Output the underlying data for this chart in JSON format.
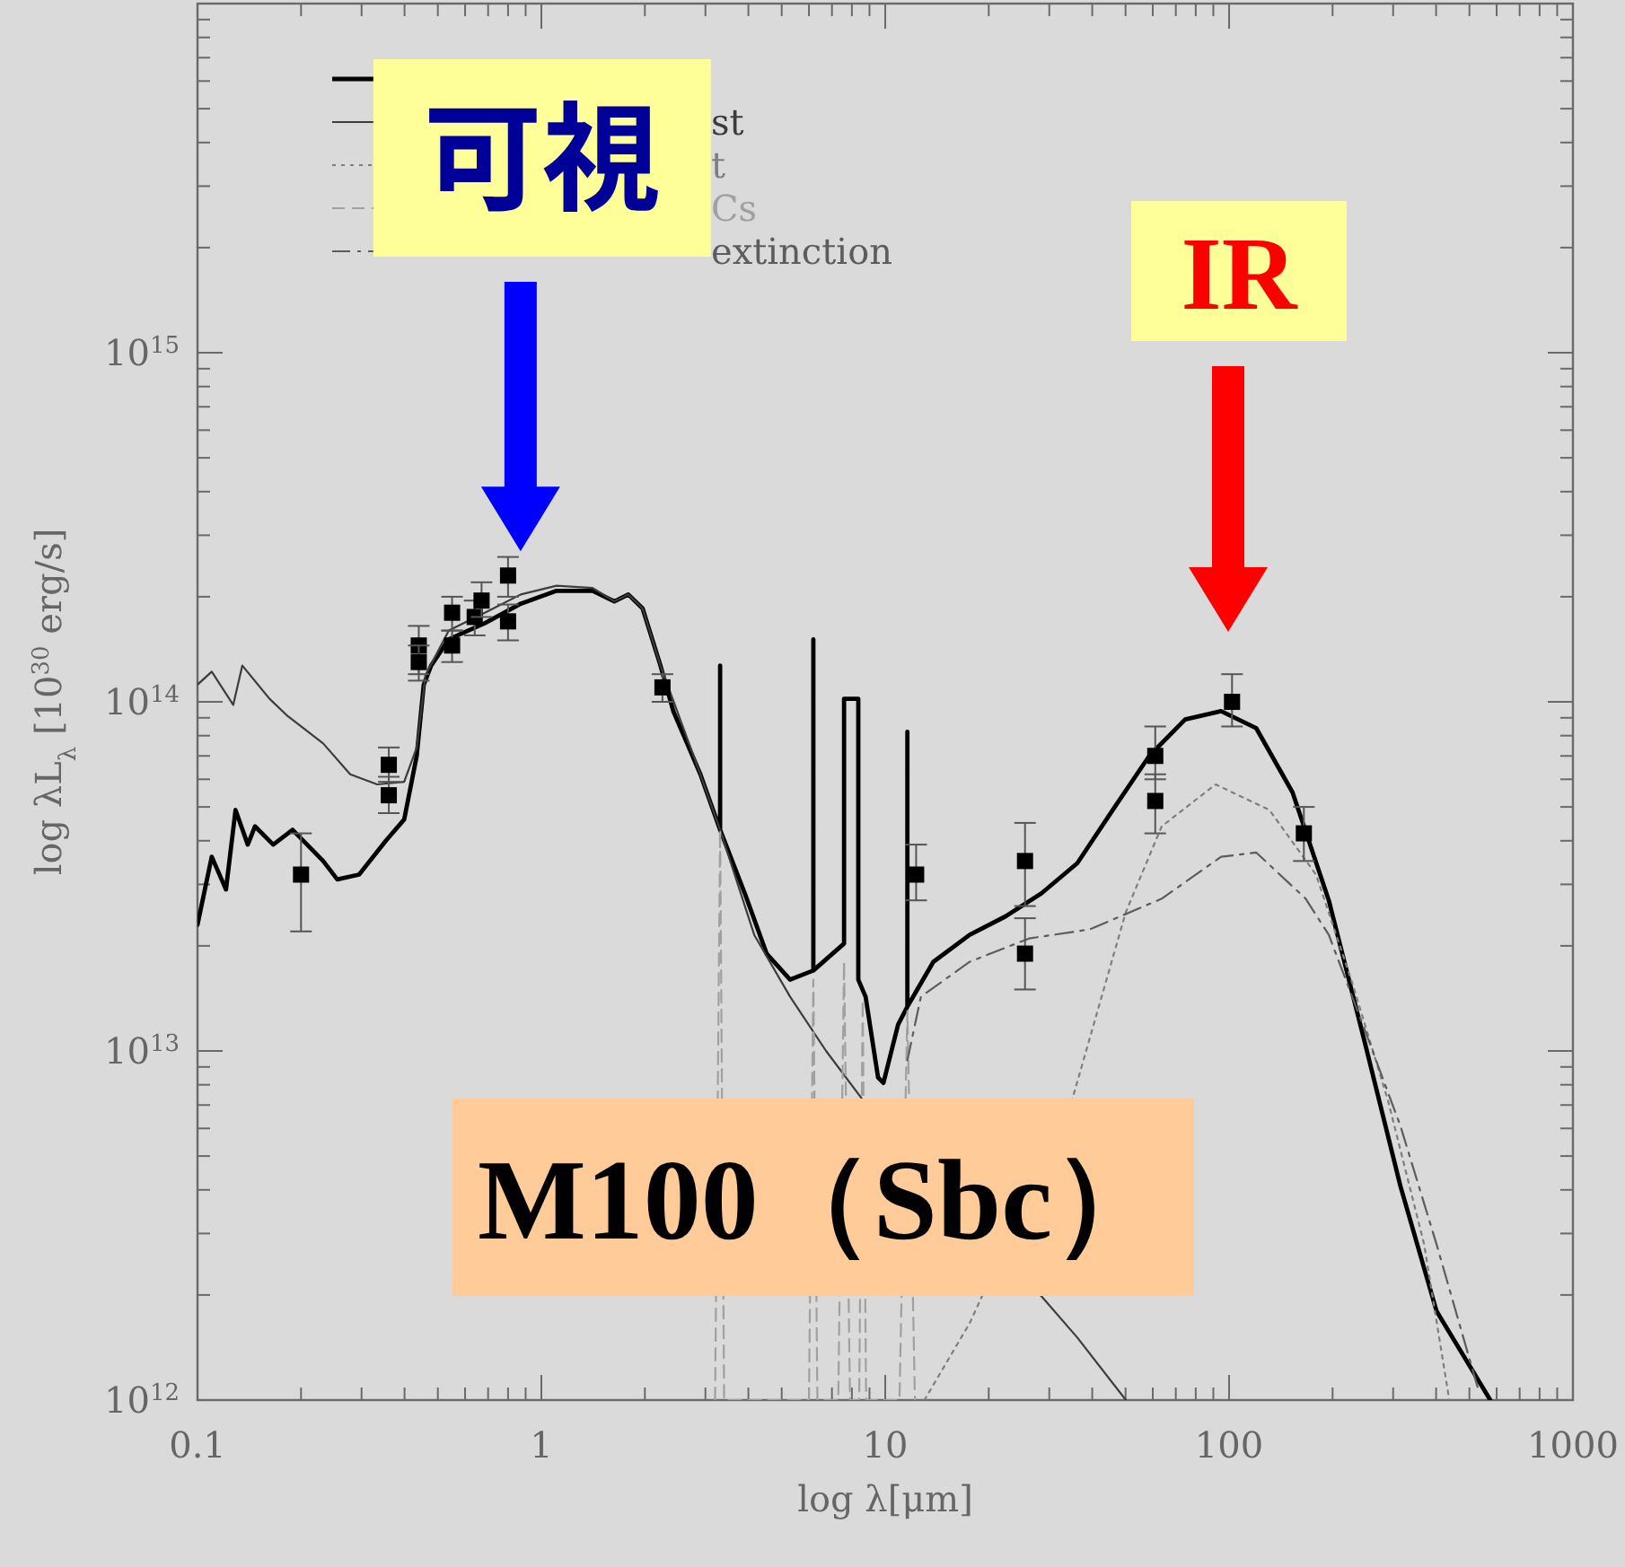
{
  "chart_data": {
    "type": "line",
    "xlabel": "log λ[μm]",
    "ylabel": "log λL$_{λ}$ [10$^{30}$ erg/s]",
    "log": "xy",
    "xlim": [
      0.1,
      1000
    ],
    "ylim": [
      1000000000000.0,
      1e+16
    ],
    "xticks": [
      0.1,
      1,
      10,
      100,
      1000
    ],
    "yticks": [
      {
        "value": 1000000000000.0,
        "label": "10$^{12}$"
      },
      {
        "value": 10000000000000.0,
        "label": "10$^{13}$"
      },
      {
        "value": 100000000000000.0,
        "label": "10$^{14}$"
      },
      {
        "value": 1000000000000000.0,
        "label": "10$^{15}$"
      }
    ],
    "legend": "top left",
    "grid": false,
    "series": [
      {
        "color": "#000000",
        "line_style": "solid",
        "x": [
          0.1,
          0.11,
          0.121,
          0.129,
          0.14,
          0.147,
          0.166,
          0.189,
          0.232,
          0.255,
          0.295,
          0.353,
          0.399,
          0.434,
          0.455,
          0.478,
          0.538,
          0.685,
          0.871,
          1.107,
          1.41,
          1.63,
          1.79,
          1.97,
          2.22,
          2.42,
          2.9,
          3.31,
          3.31,
          3.31,
          3.92,
          4.52,
          5.29,
          6.18,
          6.18,
          6.18,
          7.59,
          7.59,
          8.35,
          8.35,
          8.77,
          9.53,
          9.88,
          10.9,
          11.6,
          11.6,
          11.6,
          13.8,
          17.6,
          22.4,
          28.5,
          36.2,
          46.0,
          58.6,
          74.5,
          94.8,
          120,
          153,
          195,
          248,
          315,
          401,
          575
        ],
        "values": [
          23000000000000.0,
          36000000000000.0,
          29000000000000.0,
          49000000000000.0,
          39000000000000.0,
          44000000000000.0,
          39000000000000.0,
          43000000000000.0,
          35000000000000.0,
          31000000000000.0,
          32000000000000.0,
          40000000000000.0,
          46000000000000.0,
          70000000000000.0,
          112000000000000.0,
          127000000000000.0,
          151000000000000.0,
          168000000000000.0,
          191000000000000.0,
          208000000000000.0,
          208000000000000.0,
          194000000000000.0,
          203000000000000.0,
          185000000000000.0,
          127000000000000.0,
          94000000000000.0,
          62000000000000.0,
          43000000000000.0,
          127000000000000.0,
          43000000000000.0,
          28000000000000.0,
          19000000000000.0,
          16000000000000.0,
          17000000000000.0,
          151000000000000.0,
          17000000000000.0,
          20300000000000.0,
          102000000000000.0,
          102000000000000.0,
          16000000000000.0,
          14300000000000.0,
          8400000000000.0,
          8100000000000.0,
          11900000000000.0,
          13400000000000.0,
          82000000000000.0,
          13400000000000.0,
          18000000000000.0,
          21500000000000.0,
          24300000000000.0,
          28300000000000.0,
          34500000000000.0,
          49200000000000.0,
          70000000000000.0,
          89000000000000.0,
          94000000000000.0,
          84000000000000.0,
          55000000000000.0,
          27000000000000.0,
          10600000000000.0,
          4100000000000.0,
          1800000000000.0,
          1000000000000.0
        ]
      },
      {
        "name": "st",
        "color": "#3c3c3c",
        "line_style": "solid",
        "x": [
          0.1,
          0.11,
          0.127,
          0.135,
          0.162,
          0.183,
          0.232,
          0.278,
          0.333,
          0.399,
          0.434,
          0.46,
          0.538,
          0.685,
          0.871,
          1.107,
          1.41,
          1.63,
          1.79,
          1.97,
          2.22,
          2.9,
          3.31,
          4.16,
          5.29,
          6.73,
          8.55,
          28.5,
          36.2,
          50.1
        ],
        "values": [
          112000000000000.0,
          122000000000000.0,
          98000000000000.0,
          127000000000000.0,
          102000000000000.0,
          91000000000000.0,
          76000000000000.0,
          62000000000000.0,
          58000000000000.0,
          59000000000000.0,
          74000000000000.0,
          119000000000000.0,
          160000000000000.0,
          180000000000000.0,
          203000000000000.0,
          215000000000000.0,
          212000000000000.0,
          194000000000000.0,
          203000000000000.0,
          185000000000000.0,
          127000000000000.0,
          62000000000000.0,
          43000000000000.0,
          21500000000000.0,
          14300000000000.0,
          10000000000000.0,
          7300000000000.0,
          1980000000000.0,
          1510000000000.0,
          1000000000000.0
        ]
      },
      {
        "name": "t",
        "color": "#7e7e7e",
        "line_style": "dotted",
        "x": [
          13.0,
          17.6,
          34.9,
          50.1,
          63.7,
          91.4,
          131,
          179,
          228,
          290,
          369,
          437
        ],
        "values": [
          1000000000000.0,
          1660000000000.0,
          7200000000000.0,
          25000000000000.0,
          44000000000000.0,
          58000000000000.0,
          49000000000000.0,
          32000000000000.0,
          15700000000000.0,
          7200000000000.0,
          2800000000000.0,
          1000000000000.0
        ]
      },
      {
        "name": "Cs",
        "color": "#a0a0a0",
        "line_style": "dashed",
        "x": [
          3.2,
          3.31,
          3.4,
          6.0,
          6.18,
          6.35,
          7.3,
          7.59,
          7.9,
          8.4,
          8.6,
          8.8,
          11.0,
          11.6,
          12.2
        ],
        "values": [
          1000000000000.0,
          43000000000000.0,
          1000000000000.0,
          1000000000000.0,
          16000000000000.0,
          1000000000000.0,
          1000000000000.0,
          18000000000000.0,
          1000000000000.0,
          1000000000000.0,
          14000000000000.0,
          1000000000000.0,
          1000000000000.0,
          13000000000000.0,
          1000000000000.0
        ]
      },
      {
        "name": "extinction",
        "color": "#5c5c5c",
        "line_style": "dashdot",
        "x": [
          11.6,
          12.7,
          17.6,
          26.2,
          39.4,
          63.7,
          94.8,
          120,
          167,
          195,
          248,
          315,
          401,
          528
        ],
        "values": [
          9400000000000.0,
          14300000000000.0,
          18000000000000.0,
          21000000000000.0,
          22300000000000.0,
          27300000000000.0,
          36000000000000.0,
          37000000000000.0,
          27300000000000.0,
          21500000000000.0,
          11500000000000.0,
          6100000000000.0,
          2800000000000.0,
          1090000000000.0
        ]
      },
      {
        "type": "scatter",
        "marker": "square",
        "color": "#000000",
        "x": [
          0.2,
          0.36,
          0.36,
          0.44,
          0.44,
          0.55,
          0.55,
          0.64,
          0.67,
          0.8,
          0.8,
          2.25,
          12.3,
          25.5,
          25.5,
          61,
          61,
          102,
          165
        ],
        "values": [
          32000000000000.0,
          66000000000000.0,
          54000000000000.0,
          145000000000000.0,
          130000000000000.0,
          180000000000000.0,
          145000000000000.0,
          175000000000000.0,
          195000000000000.0,
          230000000000000.0,
          170000000000000.0,
          110000000000000.0,
          32000000000000.0,
          35000000000000.0,
          19000000000000.0,
          70000000000000.0,
          52000000000000.0,
          100000000000000.0,
          42000000000000.0
        ],
        "errors": [
          [
            22000000000000.0,
            42000000000000.0
          ],
          [
            59000000000000.0,
            74000000000000.0
          ],
          [
            48000000000000.0,
            61000000000000.0
          ],
          [
            120000000000000.0,
            165000000000000.0
          ],
          [
            115000000000000.0,
            145000000000000.0
          ],
          [
            160000000000000.0,
            200000000000000.0
          ],
          [
            130000000000000.0,
            160000000000000.0
          ],
          [
            155000000000000.0,
            195000000000000.0
          ],
          [
            175000000000000.0,
            220000000000000.0
          ],
          [
            200000000000000.0,
            260000000000000.0
          ],
          [
            150000000000000.0,
            190000000000000.0
          ],
          [
            100000000000000.0,
            120000000000000.0
          ],
          [
            27000000000000.0,
            39000000000000.0
          ],
          [
            26000000000000.0,
            45000000000000.0
          ],
          [
            15000000000000.0,
            24000000000000.0
          ],
          [
            60000000000000.0,
            85000000000000.0
          ],
          [
            42000000000000.0,
            62000000000000.0
          ],
          [
            85000000000000.0,
            120000000000000.0
          ],
          [
            35000000000000.0,
            50000000000000.0
          ]
        ]
      }
    ],
    "annotations": [
      {
        "text": "可視",
        "x": 0.87,
        "y": 270000000000000.0
      },
      "IR",
      "M100（Sbc）"
    ]
  }
}
